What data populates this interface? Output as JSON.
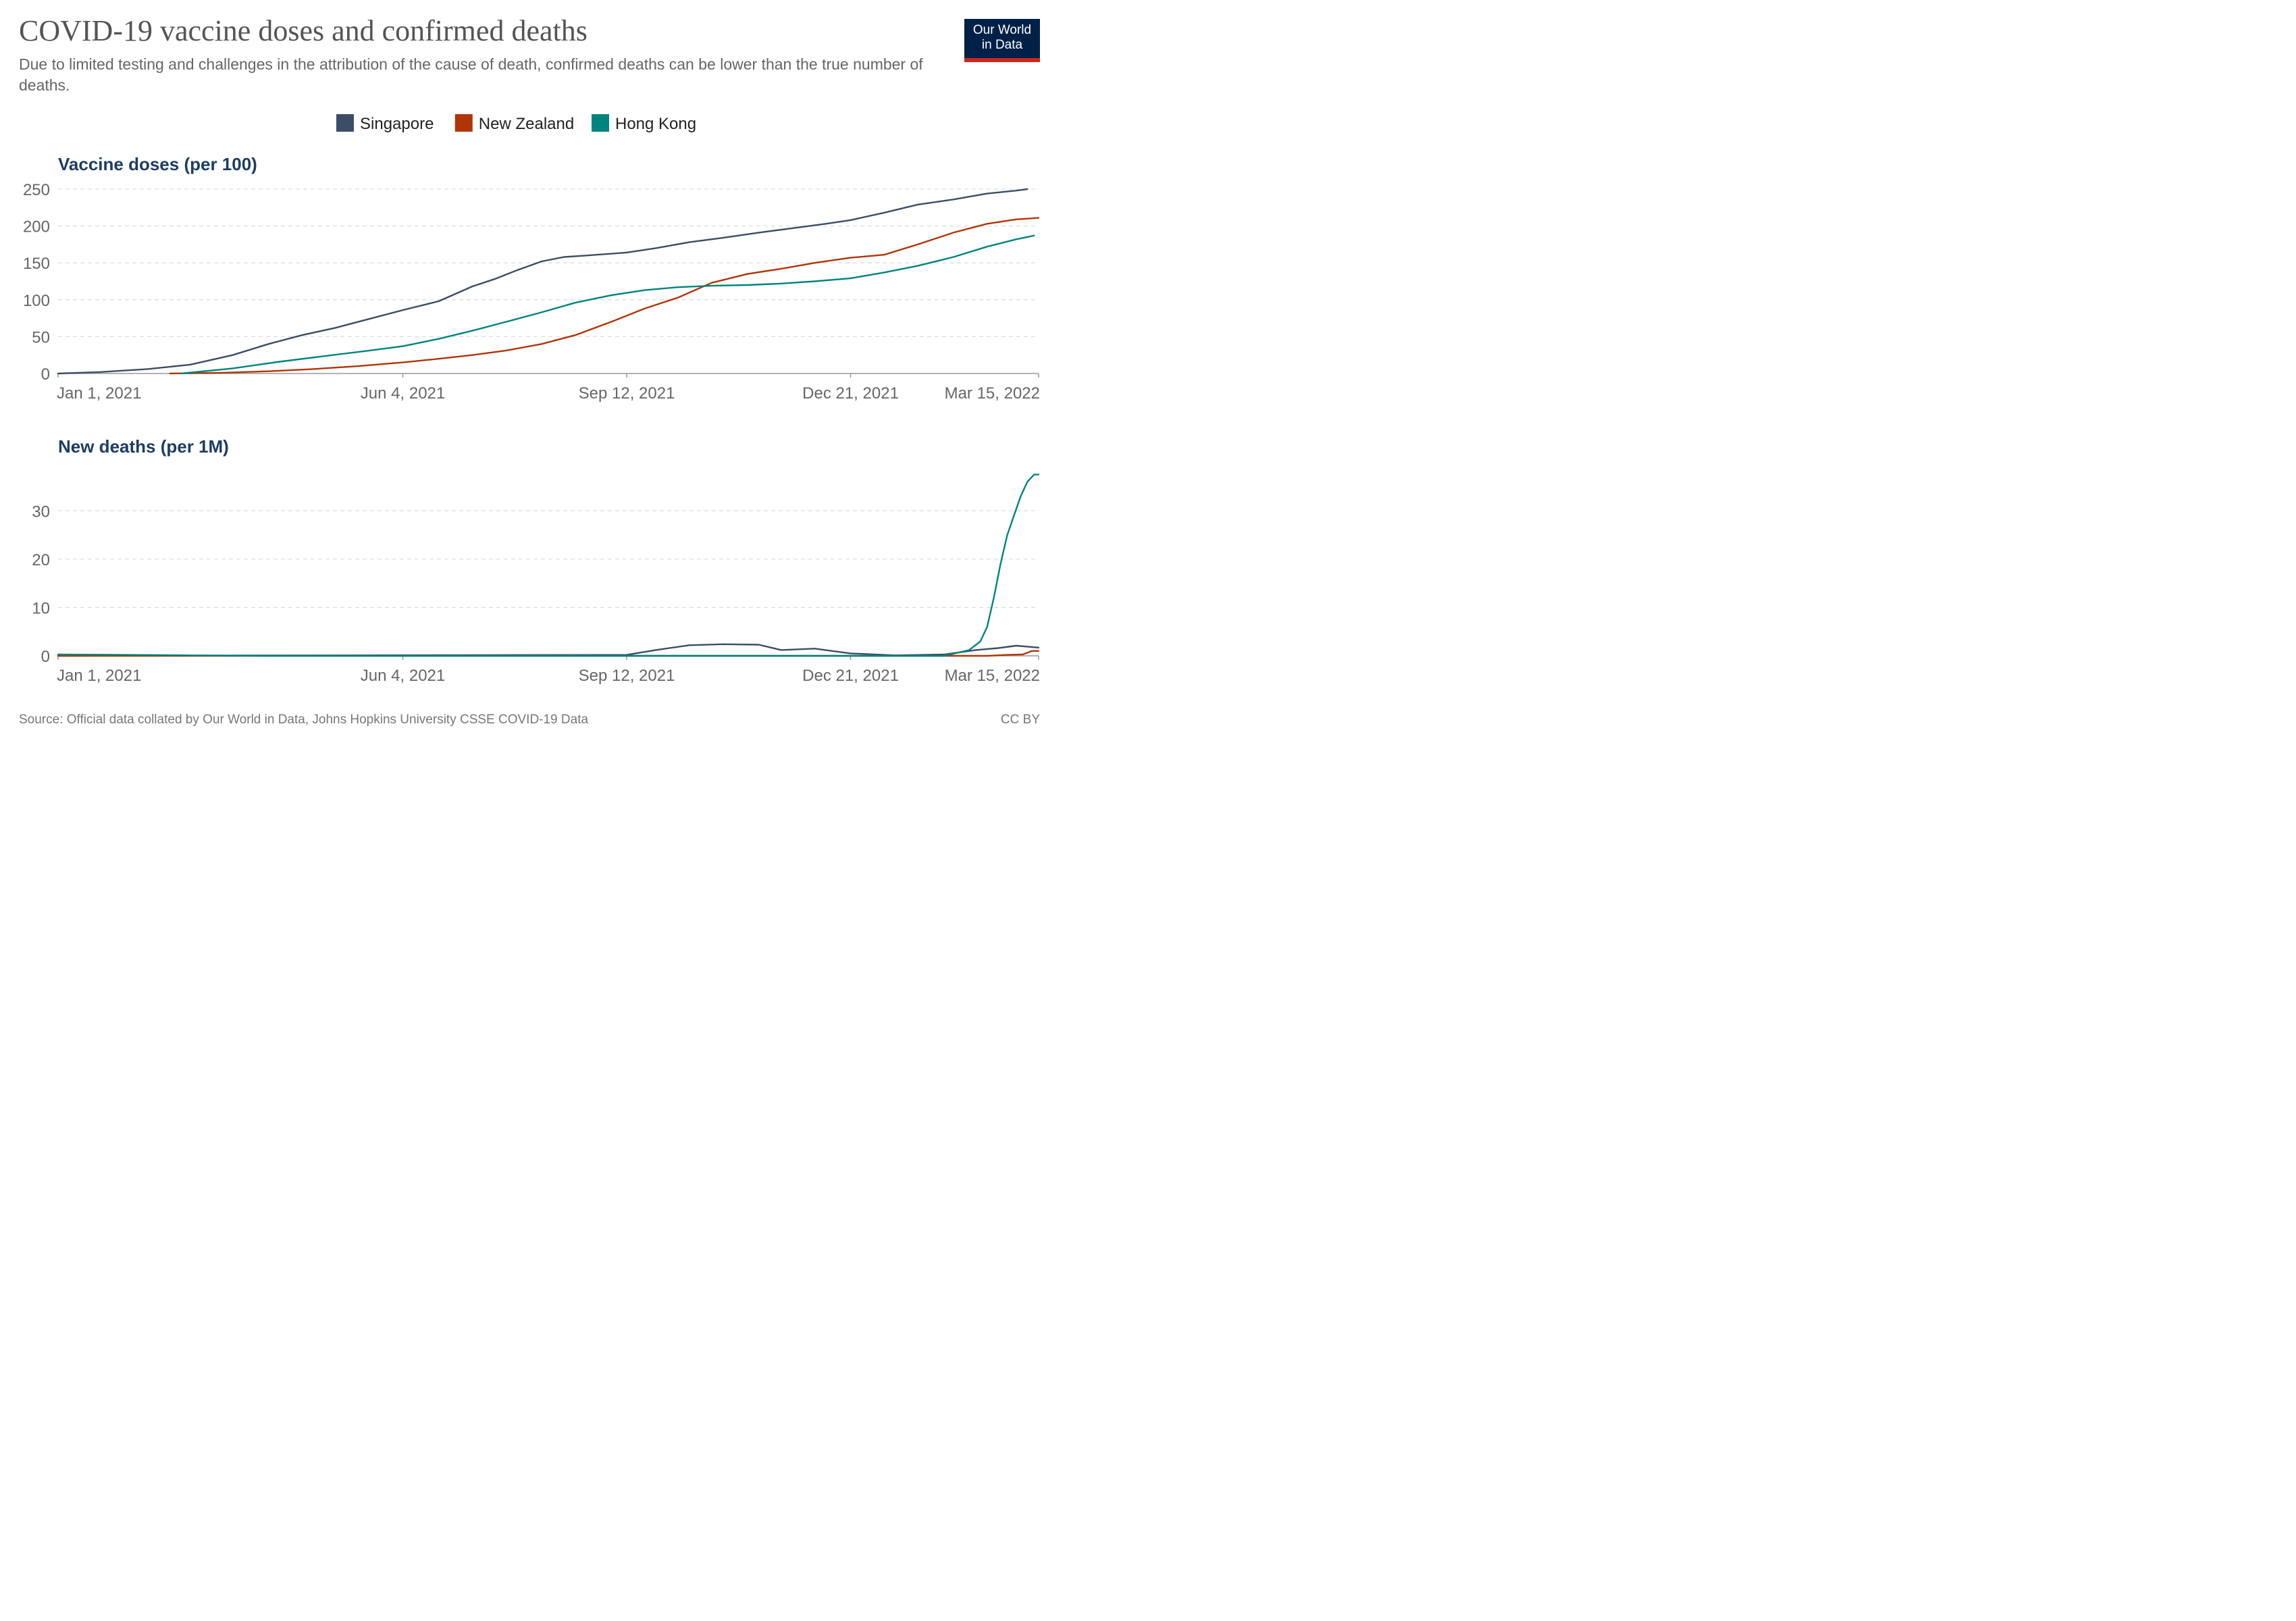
{
  "header": {
    "title": "COVID-19 vaccine doses and confirmed deaths",
    "subtitle": "Due to limited testing and challenges in the attribution of the cause of death, confirmed deaths can be lower than the true number of deaths.",
    "logo_line1": "Our World",
    "logo_line2": "in Data"
  },
  "footer": {
    "source": "Source: Official data collated by Our World in Data, Johns Hopkins University CSSE COVID-19 Data",
    "license": "CC BY"
  },
  "colors": {
    "Singapore": "#3c4e66",
    "New Zealand": "#b13507",
    "Hong Kong": "#00847e",
    "grid": "#dddddd",
    "axis": "#999999"
  },
  "chart_data": [
    {
      "type": "line",
      "title": "Vaccine doses (per 100)",
      "xlabel": "",
      "ylabel": "",
      "x_ticks": [
        "Jan 1, 2021",
        "Jun 4, 2021",
        "Sep 12, 2021",
        "Dec 21, 2021",
        "Mar 15, 2022"
      ],
      "x_range": [
        "Jan 1, 2021",
        "Mar 15, 2022"
      ],
      "y_ticks": [
        0,
        50,
        100,
        150,
        200,
        250
      ],
      "ylim": [
        0,
        250
      ],
      "grid": true,
      "legend": [
        "Singapore",
        "New Zealand",
        "Hong Kong"
      ],
      "legend_position": "top",
      "series": [
        {
          "name": "Singapore",
          "x": [
            "2021-01-01",
            "2021-01-20",
            "2021-02-10",
            "2021-03-01",
            "2021-03-20",
            "2021-04-05",
            "2021-04-20",
            "2021-05-05",
            "2021-05-20",
            "2021-06-04",
            "2021-06-20",
            "2021-07-05",
            "2021-07-15",
            "2021-07-25",
            "2021-08-05",
            "2021-08-15",
            "2021-08-25",
            "2021-09-12",
            "2021-09-25",
            "2021-10-10",
            "2021-10-25",
            "2021-11-10",
            "2021-11-25",
            "2021-12-10",
            "2021-12-21",
            "2022-01-05",
            "2022-01-20",
            "2022-02-05",
            "2022-02-20",
            "2022-03-05",
            "2022-03-10"
          ],
          "y": [
            0,
            2,
            6,
            12,
            25,
            40,
            52,
            62,
            74,
            86,
            98,
            118,
            128,
            140,
            152,
            158,
            160,
            164,
            170,
            178,
            184,
            191,
            197,
            203,
            208,
            218,
            229,
            236,
            244,
            248,
            250
          ]
        },
        {
          "name": "New Zealand",
          "x": [
            "2021-02-20",
            "2021-03-15",
            "2021-04-05",
            "2021-04-25",
            "2021-05-15",
            "2021-06-04",
            "2021-06-20",
            "2021-07-05",
            "2021-07-20",
            "2021-08-05",
            "2021-08-20",
            "2021-09-05",
            "2021-09-20",
            "2021-10-05",
            "2021-10-20",
            "2021-11-05",
            "2021-11-20",
            "2021-12-05",
            "2021-12-21",
            "2022-01-05",
            "2022-01-20",
            "2022-02-05",
            "2022-02-20",
            "2022-03-05",
            "2022-03-15"
          ],
          "y": [
            0,
            1,
            3,
            6,
            10,
            15,
            20,
            25,
            31,
            40,
            52,
            70,
            88,
            103,
            123,
            135,
            142,
            150,
            157,
            161,
            175,
            191,
            203,
            209,
            211
          ]
        },
        {
          "name": "Hong Kong",
          "x": [
            "2021-02-25",
            "2021-03-20",
            "2021-04-10",
            "2021-05-01",
            "2021-05-20",
            "2021-06-04",
            "2021-06-20",
            "2021-07-05",
            "2021-07-20",
            "2021-08-05",
            "2021-08-20",
            "2021-09-05",
            "2021-09-20",
            "2021-10-05",
            "2021-10-20",
            "2021-11-05",
            "2021-11-20",
            "2021-12-05",
            "2021-12-21",
            "2022-01-05",
            "2022-01-20",
            "2022-02-05",
            "2022-02-20",
            "2022-03-05",
            "2022-03-13"
          ],
          "y": [
            0,
            7,
            16,
            24,
            31,
            37,
            47,
            58,
            70,
            83,
            96,
            106,
            113,
            117,
            119,
            120,
            122,
            125,
            129,
            137,
            146,
            158,
            172,
            182,
            187
          ]
        }
      ]
    },
    {
      "type": "line",
      "title": "New deaths (per 1M)",
      "xlabel": "",
      "ylabel": "",
      "x_ticks": [
        "Jan 1, 2021",
        "Jun 4, 2021",
        "Sep 12, 2021",
        "Dec 21, 2021",
        "Mar 15, 2022"
      ],
      "x_range": [
        "Jan 1, 2021",
        "Mar 15, 2022"
      ],
      "y_ticks": [
        0,
        10,
        20,
        30
      ],
      "ylim": [
        0,
        38
      ],
      "grid": true,
      "series": [
        {
          "name": "Singapore",
          "x": [
            "2021-01-01",
            "2021-09-12",
            "2021-09-25",
            "2021-10-10",
            "2021-10-25",
            "2021-11-10",
            "2021-11-20",
            "2021-12-05",
            "2021-12-21",
            "2022-01-10",
            "2022-02-01",
            "2022-02-15",
            "2022-02-25",
            "2022-03-05",
            "2022-03-15"
          ],
          "y": [
            0,
            0.2,
            1.2,
            2.2,
            2.4,
            2.3,
            1.2,
            1.5,
            0.5,
            0.1,
            0.3,
            1.2,
            1.6,
            2.1,
            1.7
          ]
        },
        {
          "name": "New Zealand",
          "x": [
            "2021-01-01",
            "2022-02-20",
            "2022-03-01",
            "2022-03-08",
            "2022-03-12",
            "2022-03-15"
          ],
          "y": [
            0,
            0,
            0.2,
            0.3,
            1.0,
            1.0
          ]
        },
        {
          "name": "Hong Kong",
          "x": [
            "2021-01-01",
            "2021-02-01",
            "2021-03-01",
            "2021-04-01",
            "2021-05-01",
            "2022-02-01",
            "2022-02-12",
            "2022-02-17",
            "2022-02-20",
            "2022-02-23",
            "2022-02-26",
            "2022-03-01",
            "2022-03-04",
            "2022-03-07",
            "2022-03-10",
            "2022-03-13",
            "2022-03-15"
          ],
          "y": [
            0.3,
            0.2,
            0.1,
            0.0,
            0.0,
            0.0,
            1.2,
            3.0,
            6.0,
            12.0,
            19.0,
            25.0,
            29.0,
            33.0,
            36.0,
            37.5,
            37.5
          ]
        }
      ]
    }
  ]
}
